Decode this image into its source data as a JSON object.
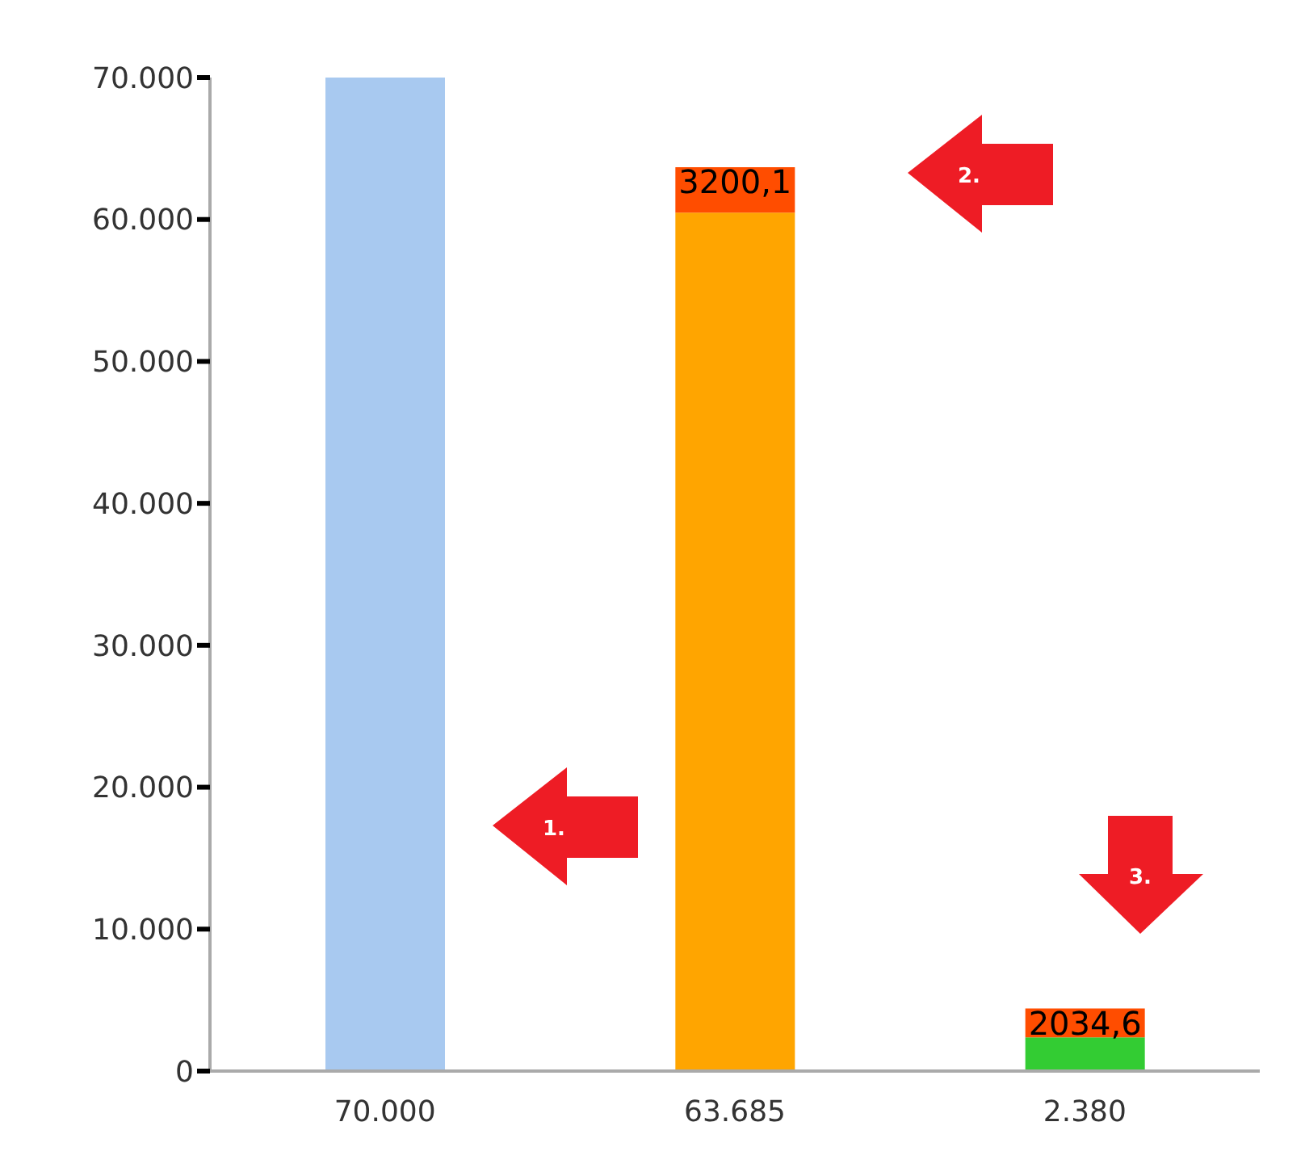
{
  "chart_data": {
    "type": "bar",
    "stacked": true,
    "categories": [
      "70.000",
      "63.685",
      "2.380"
    ],
    "series": [
      {
        "color": "#a8c9f0",
        "values": [
          70000,
          null,
          null
        ]
      },
      {
        "color": "#ffa500",
        "values": [
          null,
          60485,
          null
        ]
      },
      {
        "color": "#33cc33",
        "values": [
          null,
          null,
          2380
        ]
      },
      {
        "color": "#ff4d00",
        "values": [
          null,
          3200.1,
          2034.6
        ],
        "value_labels": [
          null,
          "3200,1",
          "2034,6"
        ]
      }
    ],
    "ylim": [
      0,
      70000
    ],
    "yticks": [
      {
        "value": 0,
        "label": "0"
      },
      {
        "value": 10000,
        "label": "10.000"
      },
      {
        "value": 20000,
        "label": "20.000"
      },
      {
        "value": 30000,
        "label": "30.000"
      },
      {
        "value": 40000,
        "label": "40.000"
      },
      {
        "value": 50000,
        "label": "50.000"
      },
      {
        "value": 60000,
        "label": "60.000"
      },
      {
        "value": 70000,
        "label": "70.000"
      }
    ],
    "annotations": [
      "1.",
      "2.",
      "3."
    ],
    "legend": false,
    "grid": false
  }
}
